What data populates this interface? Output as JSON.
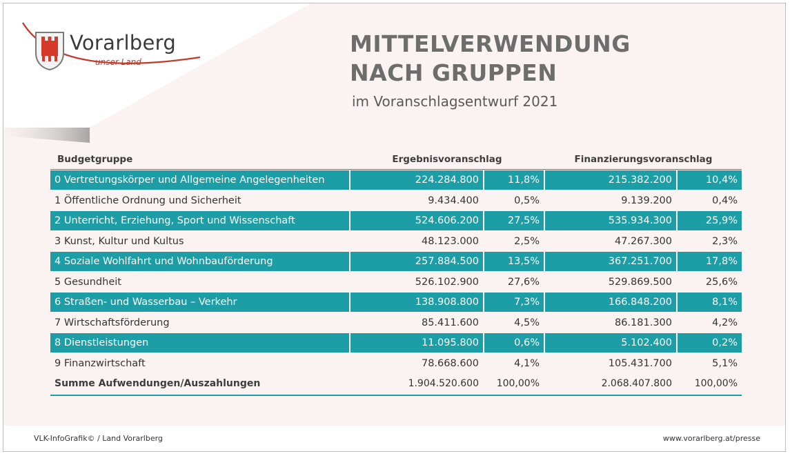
{
  "logo": {
    "name": "Vorarlberg",
    "tagline": "unser Land"
  },
  "title_line1": "MITTELVERWENDUNG",
  "title_line2": "NACH GRUPPEN",
  "subtitle": "im Voranschlagsentwurf 2021",
  "colors": {
    "accent": "#1d9da6",
    "background": "#fbf3f1",
    "logo_red": "#c0392b"
  },
  "chart_data": {
    "type": "table",
    "headers": [
      "Budgetgruppe",
      "Ergebnisvoranschlag",
      "Finanzierungsvoranschlag"
    ],
    "rows": [
      [
        "0 Vertretungskörper und Allgemeine Angelegenheiten",
        "224.284.800",
        "11,8%",
        "215.382.200",
        "10,4%"
      ],
      [
        "1 Öffentliche Ordnung und Sicherheit",
        "9.434.400",
        "0,5%",
        "9.139.200",
        "0,4%"
      ],
      [
        "2 Unterricht, Erziehung, Sport und Wissenschaft",
        "524.606.200",
        "27,5%",
        "535.934.300",
        "25,9%"
      ],
      [
        "3 Kunst, Kultur und Kultus",
        "48.123.000",
        "2,5%",
        "47.267.300",
        "2,3%"
      ],
      [
        "4 Soziale Wohlfahrt und Wohnbauförderung",
        "257.884.500",
        "13,5%",
        "367.251.700",
        "17,8%"
      ],
      [
        "5 Gesundheit",
        "526.102.900",
        "27,6%",
        "529.869.500",
        "25,6%"
      ],
      [
        "6 Straßen- und Wasserbau – Verkehr",
        "138.908.800",
        "7,3%",
        "166.848.200",
        "8,1%"
      ],
      [
        "7 Wirtschaftsförderung",
        "85.411.600",
        "4,5%",
        "86.181.300",
        "4,2%"
      ],
      [
        "8 Dienstleistungen",
        "11.095.800",
        "0,6%",
        "5.102.400",
        "0,2%"
      ],
      [
        "9 Finanzwirtschaft",
        "78.668.600",
        "4,1%",
        "105.431.700",
        "5,1%"
      ]
    ],
    "total": [
      "Summe Aufwendungen/Auszahlungen",
      "1.904.520.600",
      "100,00%",
      "2.068.407.800",
      "100,00%"
    ]
  },
  "footer": {
    "left": "VLK-InfoGrafik© / Land Vorarlberg",
    "right": "www.vorarlberg.at/presse"
  }
}
